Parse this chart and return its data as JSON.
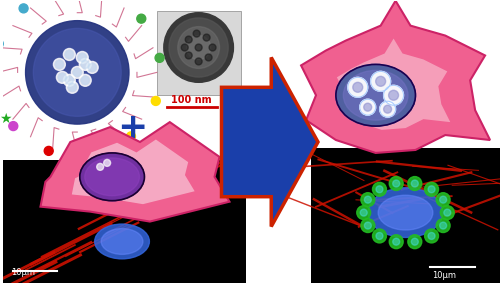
{
  "bg_color": "#ffffff",
  "arrow_color": "#1a3faa",
  "arrow_outline": "#cc2200",
  "scale_bar_color_red": "#cc0000",
  "scale_bar_color_white": "#ffffff",
  "scale_text_10um": "10μm",
  "scale_text_100nm": "100 nm",
  "plus_color": "#1a3faa",
  "cell_pink": "#f06090",
  "cell_pink_light": "#f8c0d0",
  "cell_pink_inner": "#f8d0dc",
  "cell_edge": "#cc2266",
  "nucleus_purple": "#7030a0",
  "nucleus_blue_gray": "#5060a0",
  "nanoparticle_blue": "#263580",
  "nanoparticle_mid": "#4858b0",
  "tem_dark": "#404040",
  "tem_mid": "#808080",
  "tem_light": "#b0b0b0",
  "confocal_bg": "#000000",
  "confocal_red": "#cc1100",
  "confocal_red2": "#ff3300",
  "confocal_blue": "#3366dd",
  "confocal_blue2": "#6688ff",
  "confocal_green": "#22bb22",
  "confocal_cyan": "#44dddd",
  "ligand_colors": [
    "#ffdd00",
    "#dd0000",
    "#cc44cc",
    "#44aacc",
    "#ff8800",
    "#44aa44"
  ],
  "star_color": "#22aa22",
  "nuc_white_dots": "#ffffff",
  "nuc_dot_edge": "#aaddff"
}
